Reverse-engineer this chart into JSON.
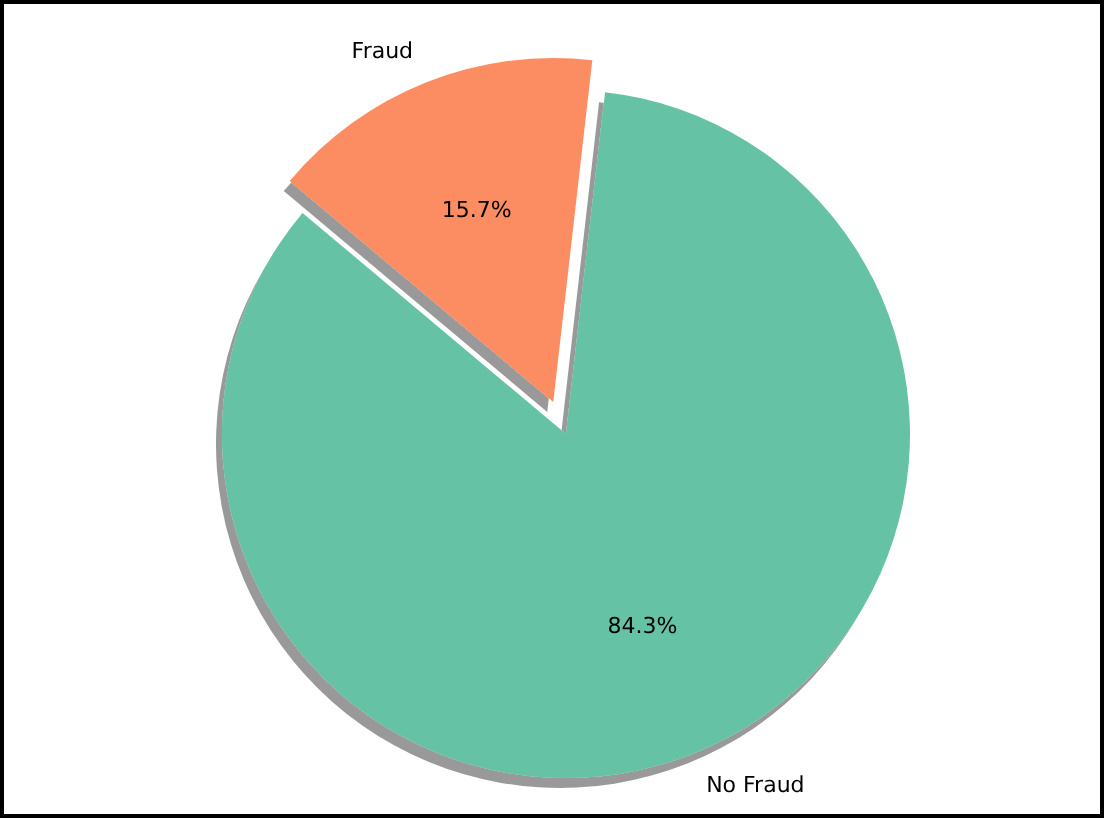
{
  "chart_data": {
    "type": "pie",
    "categories": [
      "No Fraud",
      "Fraud"
    ],
    "values": [
      84.3,
      15.7
    ],
    "colors": [
      "#66c2a5",
      "#fc8d62"
    ],
    "value_labels": [
      "84.3%",
      "15.7%"
    ]
  }
}
